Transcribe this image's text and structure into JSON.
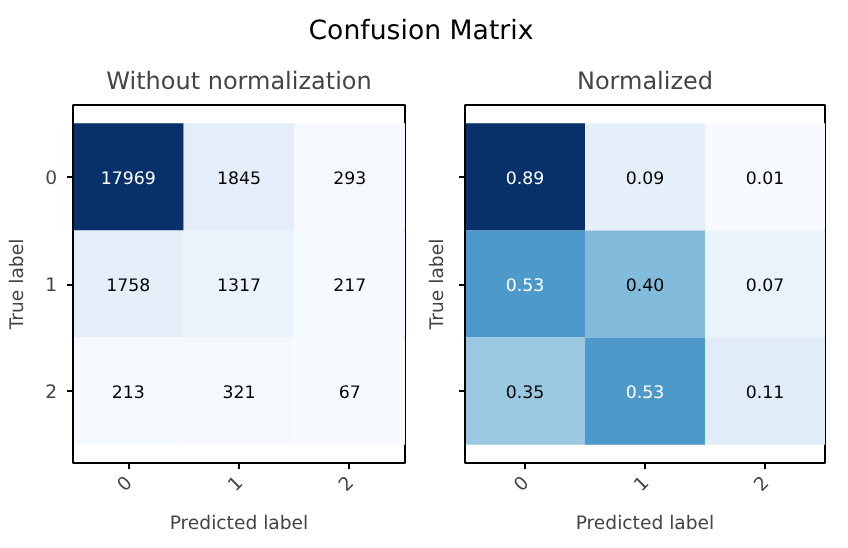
{
  "chart_data": [
    {
      "type": "other",
      "title": "Confusion Matrix"
    },
    {
      "type": "heatmap",
      "title": "Without normalization",
      "xlabel": "Predicted label",
      "ylabel": "True label",
      "categories": [
        "0",
        "1",
        "2"
      ],
      "y_categories": [
        "0",
        "1",
        "2"
      ],
      "cells": [
        [
          17969,
          1845,
          293
        ],
        [
          1758,
          1317,
          217
        ],
        [
          213,
          321,
          67
        ]
      ],
      "data_labels": true,
      "grid": false
    },
    {
      "type": "heatmap",
      "title": "Normalized",
      "xlabel": "Predicted label",
      "ylabel": "True label",
      "categories": [
        "0",
        "1",
        "2"
      ],
      "y_categories": [
        "0",
        "1",
        "2"
      ],
      "cells": [
        [
          0.89,
          0.09,
          0.01
        ],
        [
          0.53,
          0.4,
          0.07
        ],
        [
          0.35,
          0.53,
          0.11
        ]
      ],
      "cell_labels": [
        [
          "0.89",
          "0.09",
          "0.01"
        ],
        [
          "0.53",
          "0.40",
          "0.07"
        ],
        [
          "0.35",
          "0.53",
          "0.11"
        ]
      ],
      "data_labels": true,
      "grid": false,
      "tick_labels": "x"
    }
  ]
}
